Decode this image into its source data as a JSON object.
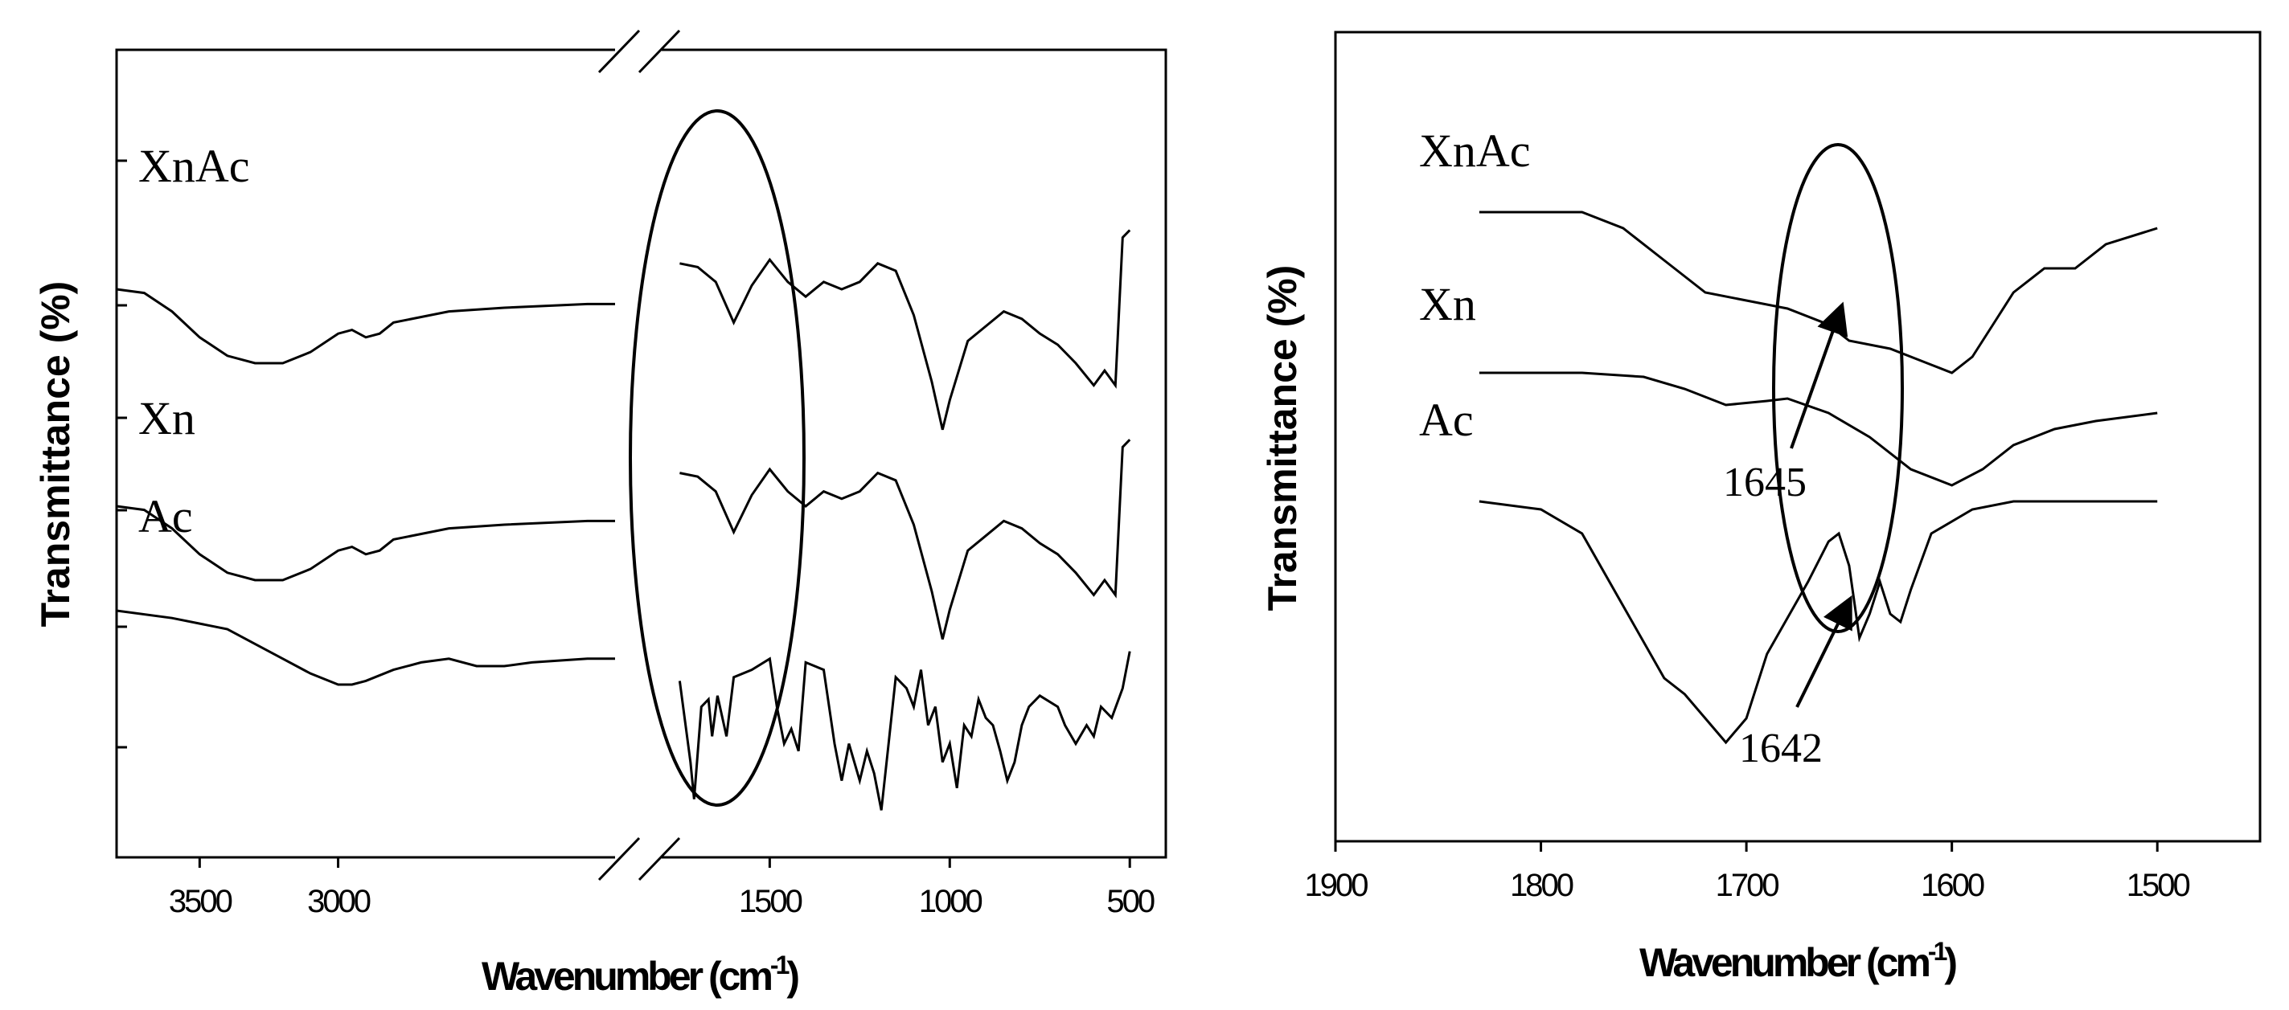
{
  "chart_data": [
    {
      "type": "line",
      "title": "",
      "xlabel": "Wavenumber (cm-1)",
      "xlabel_main": "Wavenumber (cm",
      "xlabel_sup": "-1",
      "xlabel_close": ")",
      "ylabel": "Transmittance (%)",
      "x_segments": [
        [
          3800,
          2000
        ],
        [
          1800,
          400
        ]
      ],
      "x_ticks": [
        3500,
        3000,
        1500,
        1000,
        500
      ],
      "x_tick_labels": [
        "3500",
        "3000",
        "1500",
        "1000",
        "500"
      ],
      "y_units": "relative, offset per series",
      "series": [
        {
          "name": "XnAc",
          "points": [
            [
              3800,
              82
            ],
            [
              3700,
              81
            ],
            [
              3600,
              76
            ],
            [
              3500,
              69
            ],
            [
              3400,
              64
            ],
            [
              3300,
              62
            ],
            [
              3200,
              62
            ],
            [
              3100,
              65
            ],
            [
              3000,
              70
            ],
            [
              2950,
              71
            ],
            [
              2900,
              69
            ],
            [
              2850,
              70
            ],
            [
              2800,
              73
            ],
            [
              2600,
              76
            ],
            [
              2400,
              77
            ],
            [
              2100,
              78
            ],
            [
              2000,
              78
            ],
            [
              1750,
              89
            ],
            [
              1700,
              88
            ],
            [
              1650,
              84
            ],
            [
              1600,
              73
            ],
            [
              1550,
              83
            ],
            [
              1500,
              90
            ],
            [
              1450,
              84
            ],
            [
              1400,
              80
            ],
            [
              1350,
              84
            ],
            [
              1300,
              82
            ],
            [
              1250,
              84
            ],
            [
              1200,
              89
            ],
            [
              1150,
              87
            ],
            [
              1100,
              75
            ],
            [
              1050,
              57
            ],
            [
              1020,
              44
            ],
            [
              1000,
              52
            ],
            [
              950,
              68
            ],
            [
              900,
              72
            ],
            [
              850,
              76
            ],
            [
              800,
              74
            ],
            [
              750,
              70
            ],
            [
              700,
              67
            ],
            [
              650,
              62
            ],
            [
              600,
              56
            ],
            [
              570,
              60
            ],
            [
              540,
              56
            ],
            [
              520,
              96
            ],
            [
              500,
              98
            ]
          ]
        },
        {
          "name": "Xn",
          "points": [
            [
              3800,
              44
            ],
            [
              3700,
              43
            ],
            [
              3600,
              38
            ],
            [
              3500,
              31
            ],
            [
              3400,
              26
            ],
            [
              3300,
              24
            ],
            [
              3200,
              24
            ],
            [
              3100,
              27
            ],
            [
              3000,
              32
            ],
            [
              2950,
              33
            ],
            [
              2900,
              31
            ],
            [
              2850,
              32
            ],
            [
              2800,
              35
            ],
            [
              2600,
              38
            ],
            [
              2400,
              39
            ],
            [
              2100,
              40
            ],
            [
              2000,
              40
            ],
            [
              1750,
              53
            ],
            [
              1700,
              52
            ],
            [
              1650,
              48
            ],
            [
              1600,
              37
            ],
            [
              1550,
              47
            ],
            [
              1500,
              54
            ],
            [
              1450,
              48
            ],
            [
              1400,
              44
            ],
            [
              1350,
              48
            ],
            [
              1300,
              46
            ],
            [
              1250,
              48
            ],
            [
              1200,
              53
            ],
            [
              1150,
              51
            ],
            [
              1100,
              39
            ],
            [
              1050,
              21
            ],
            [
              1020,
              8
            ],
            [
              1000,
              16
            ],
            [
              950,
              32
            ],
            [
              900,
              36
            ],
            [
              850,
              40
            ],
            [
              800,
              38
            ],
            [
              750,
              34
            ],
            [
              700,
              31
            ],
            [
              650,
              26
            ],
            [
              600,
              20
            ],
            [
              570,
              24
            ],
            [
              540,
              20
            ],
            [
              520,
              60
            ],
            [
              500,
              62
            ]
          ]
        },
        {
          "name": "Ac",
          "points": [
            [
              3800,
              26
            ],
            [
              3600,
              24
            ],
            [
              3400,
              21
            ],
            [
              3300,
              17
            ],
            [
              3200,
              13
            ],
            [
              3100,
              9
            ],
            [
              3000,
              6
            ],
            [
              2950,
              6
            ],
            [
              2900,
              7
            ],
            [
              2800,
              10
            ],
            [
              2700,
              12
            ],
            [
              2600,
              13
            ],
            [
              2500,
              11
            ],
            [
              2400,
              11
            ],
            [
              2300,
              12
            ],
            [
              2100,
              13
            ],
            [
              2000,
              13
            ],
            [
              1750,
              7
            ],
            [
              1720,
              -15
            ],
            [
              1710,
              -25
            ],
            [
              1690,
              0
            ],
            [
              1670,
              2
            ],
            [
              1660,
              -8
            ],
            [
              1645,
              3
            ],
            [
              1620,
              -8
            ],
            [
              1600,
              8
            ],
            [
              1550,
              10
            ],
            [
              1500,
              13
            ],
            [
              1480,
              0
            ],
            [
              1460,
              -10
            ],
            [
              1440,
              -6
            ],
            [
              1420,
              -12
            ],
            [
              1400,
              12
            ],
            [
              1350,
              10
            ],
            [
              1320,
              -10
            ],
            [
              1300,
              -20
            ],
            [
              1280,
              -10
            ],
            [
              1250,
              -20
            ],
            [
              1230,
              -12
            ],
            [
              1210,
              -18
            ],
            [
              1190,
              -28
            ],
            [
              1170,
              -10
            ],
            [
              1150,
              8
            ],
            [
              1120,
              5
            ],
            [
              1100,
              0
            ],
            [
              1080,
              10
            ],
            [
              1060,
              -5
            ],
            [
              1040,
              0
            ],
            [
              1020,
              -15
            ],
            [
              1000,
              -10
            ],
            [
              980,
              -22
            ],
            [
              960,
              -5
            ],
            [
              940,
              -8
            ],
            [
              920,
              2
            ],
            [
              900,
              -3
            ],
            [
              880,
              -5
            ],
            [
              860,
              -12
            ],
            [
              840,
              -20
            ],
            [
              820,
              -15
            ],
            [
              800,
              -5
            ],
            [
              780,
              0
            ],
            [
              750,
              3
            ],
            [
              700,
              0
            ],
            [
              680,
              -5
            ],
            [
              650,
              -10
            ],
            [
              620,
              -5
            ],
            [
              600,
              -8
            ],
            [
              580,
              0
            ],
            [
              550,
              -3
            ],
            [
              520,
              5
            ],
            [
              500,
              15
            ]
          ]
        }
      ],
      "series_labels": [
        "XnAc",
        "Xn",
        "Ac"
      ],
      "annotations": [
        "ellipse around 1800–1500 cm-1 region",
        "axis break marks"
      ]
    },
    {
      "type": "line",
      "title": "",
      "xlabel": "Wavenumber (cm-1)",
      "xlabel_main": "Wavenumber (cm",
      "xlabel_sup": "-1",
      "xlabel_close": ")",
      "ylabel": "Transmittance (%)",
      "xlim": [
        1900,
        1450
      ],
      "x_ticks": [
        1900,
        1800,
        1700,
        1600,
        1500
      ],
      "x_tick_labels": [
        "1900",
        "1800",
        "1700",
        "1600",
        "1500"
      ],
      "y_units": "relative, offset per series",
      "series": [
        {
          "name": "XnAc",
          "points": [
            [
              1830,
              80
            ],
            [
              1780,
              80
            ],
            [
              1760,
              78
            ],
            [
              1740,
              74
            ],
            [
              1720,
              70
            ],
            [
              1700,
              69
            ],
            [
              1680,
              68
            ],
            [
              1660,
              66
            ],
            [
              1650,
              64
            ],
            [
              1630,
              63
            ],
            [
              1610,
              61
            ],
            [
              1600,
              60
            ],
            [
              1590,
              62
            ],
            [
              1580,
              66
            ],
            [
              1570,
              70
            ],
            [
              1555,
              73
            ],
            [
              1540,
              73
            ],
            [
              1525,
              76
            ],
            [
              1500,
              78
            ]
          ]
        },
        {
          "name": "Xn",
          "points": [
            [
              1830,
              60
            ],
            [
              1780,
              60
            ],
            [
              1750,
              59.5
            ],
            [
              1730,
              58
            ],
            [
              1710,
              56
            ],
            [
              1690,
              56.5
            ],
            [
              1680,
              56.8
            ],
            [
              1660,
              55
            ],
            [
              1640,
              52
            ],
            [
              1620,
              48
            ],
            [
              1600,
              46
            ],
            [
              1585,
              48
            ],
            [
              1570,
              51
            ],
            [
              1550,
              53
            ],
            [
              1530,
              54
            ],
            [
              1500,
              55
            ]
          ]
        },
        {
          "name": "Ac",
          "points": [
            [
              1830,
              44
            ],
            [
              1800,
              43
            ],
            [
              1780,
              40
            ],
            [
              1760,
              31
            ],
            [
              1740,
              22
            ],
            [
              1730,
              20
            ],
            [
              1720,
              17
            ],
            [
              1710,
              14
            ],
            [
              1700,
              17
            ],
            [
              1690,
              25
            ],
            [
              1670,
              34
            ],
            [
              1660,
              39
            ],
            [
              1655,
              40
            ],
            [
              1650,
              36
            ],
            [
              1645,
              27
            ],
            [
              1640,
              30
            ],
            [
              1635,
              34
            ],
            [
              1630,
              30
            ],
            [
              1625,
              29
            ],
            [
              1620,
              33
            ],
            [
              1610,
              40
            ],
            [
              1590,
              43
            ],
            [
              1570,
              44
            ],
            [
              1500,
              44
            ]
          ]
        }
      ],
      "series_labels": [
        "XnAc",
        "Xn",
        "Ac"
      ],
      "annotations": [
        {
          "text": "1645",
          "target_x": 1655
        },
        {
          "text": "1642",
          "target_x": 1645
        }
      ]
    }
  ]
}
